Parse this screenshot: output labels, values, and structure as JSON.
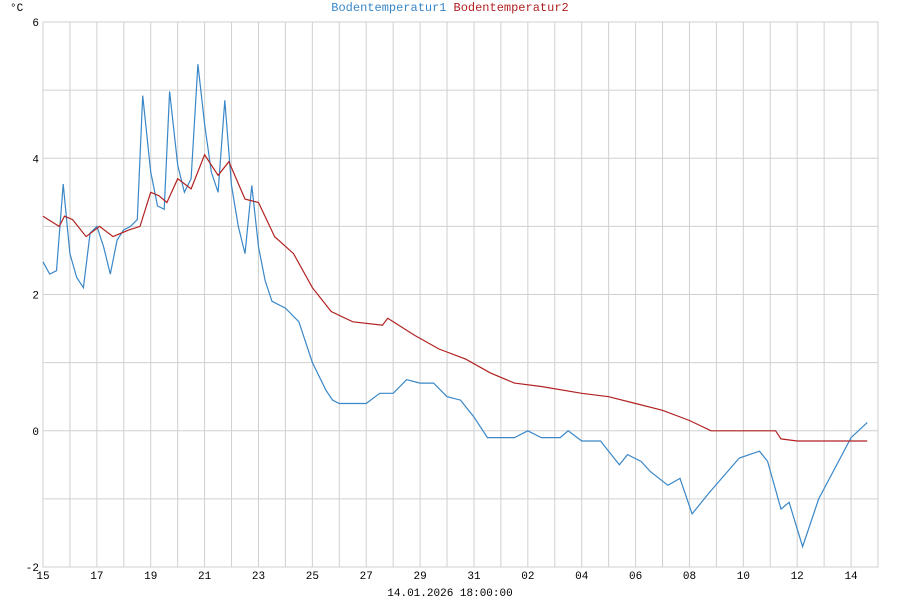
{
  "chart_data": {
    "type": "line",
    "unit": "°C",
    "footer": "14.01.2026 18:00:00",
    "xlim": [
      0,
      31
    ],
    "xticks": [
      {
        "value": 0,
        "label": "15"
      },
      {
        "value": 2,
        "label": "17"
      },
      {
        "value": 4,
        "label": "19"
      },
      {
        "value": 6,
        "label": "21"
      },
      {
        "value": 8,
        "label": "23"
      },
      {
        "value": 10,
        "label": "25"
      },
      {
        "value": 12,
        "label": "27"
      },
      {
        "value": 14,
        "label": "29"
      },
      {
        "value": 16,
        "label": "31"
      },
      {
        "value": 18,
        "label": "02"
      },
      {
        "value": 20,
        "label": "04"
      },
      {
        "value": 22,
        "label": "06"
      },
      {
        "value": 24,
        "label": "08"
      },
      {
        "value": 26,
        "label": "10"
      },
      {
        "value": 28,
        "label": "12"
      },
      {
        "value": 30,
        "label": "14"
      }
    ],
    "xminor": [
      1,
      3,
      5,
      7,
      9,
      11,
      13,
      15,
      17,
      19,
      21,
      23,
      25,
      27,
      29,
      31
    ],
    "ylim": [
      -2,
      6
    ],
    "yticks": [
      -2,
      0,
      2,
      4,
      6
    ],
    "yminor": [
      -1,
      1,
      3,
      5
    ],
    "grid": true,
    "series": [
      {
        "name": "Bodentemperatur1",
        "color": "#3a87c8",
        "x": [
          0,
          0.25,
          0.5,
          0.75,
          1.0,
          1.25,
          1.5,
          1.75,
          2.0,
          2.25,
          2.5,
          2.75,
          3.0,
          3.25,
          3.5,
          3.7,
          4.0,
          4.25,
          4.5,
          4.7,
          5.0,
          5.25,
          5.5,
          5.75,
          6.0,
          6.25,
          6.5,
          6.75,
          7.0,
          7.25,
          7.5,
          7.75,
          8.0,
          8.25,
          8.5,
          9.0,
          9.5,
          10.0,
          10.5,
          10.75,
          11.0,
          12.0,
          12.5,
          13.0,
          13.5,
          14.0,
          14.5,
          15.0,
          15.5,
          16.0,
          16.5,
          17.5,
          18.0,
          18.5,
          19.2,
          19.5,
          20.0,
          20.7,
          21.0,
          21.4,
          21.7,
          22.2,
          22.55,
          23.2,
          23.65,
          24.1,
          24.75,
          25.85,
          26.6,
          26.9,
          27.4,
          27.7,
          28.2,
          28.8,
          30.0,
          30.6
        ],
        "values": [
          2.48,
          2.3,
          2.35,
          3.62,
          2.6,
          2.25,
          2.1,
          2.9,
          3.0,
          2.7,
          2.3,
          2.8,
          2.95,
          3.0,
          3.1,
          4.92,
          3.8,
          3.3,
          3.25,
          4.98,
          3.9,
          3.5,
          3.7,
          5.38,
          4.5,
          3.8,
          3.5,
          4.85,
          3.6,
          3.0,
          2.6,
          3.6,
          2.7,
          2.2,
          1.9,
          1.8,
          1.6,
          1.0,
          0.6,
          0.45,
          0.4,
          0.4,
          0.55,
          0.55,
          0.75,
          0.7,
          0.7,
          0.5,
          0.45,
          0.2,
          -0.1,
          -0.1,
          0,
          -0.1,
          -0.1,
          0,
          -0.15,
          -0.15,
          -0.3,
          -0.5,
          -0.35,
          -0.45,
          -0.6,
          -0.8,
          -0.7,
          -1.22,
          -0.9,
          -0.4,
          -0.3,
          -0.45,
          -1.15,
          -1.05,
          -1.7,
          -1.0,
          -0.1,
          0.12
        ]
      },
      {
        "name": "Bodentemperatur2",
        "color": "#b22222",
        "x": [
          0,
          0.6,
          0.8,
          1.1,
          1.6,
          2.1,
          2.6,
          3.2,
          3.6,
          4.0,
          4.3,
          4.6,
          5.0,
          5.5,
          6.0,
          6.5,
          6.9,
          7.5,
          8.0,
          8.6,
          9.3,
          10.0,
          10.7,
          11.5,
          12.6,
          12.8,
          13.8,
          14.7,
          15.7,
          16.6,
          17.5,
          18.5,
          20.0,
          21.0,
          22.0,
          23.0,
          24.0,
          24.8,
          27.2,
          27.4,
          28.0,
          30.6
        ],
        "values": [
          3.15,
          3.0,
          3.15,
          3.1,
          2.85,
          3.0,
          2.85,
          2.95,
          3.0,
          3.5,
          3.45,
          3.35,
          3.7,
          3.55,
          4.05,
          3.75,
          3.95,
          3.4,
          3.35,
          2.85,
          2.6,
          2.1,
          1.75,
          1.6,
          1.55,
          1.65,
          1.4,
          1.2,
          1.05,
          0.85,
          0.7,
          0.65,
          0.55,
          0.5,
          0.4,
          0.3,
          0.15,
          0,
          0,
          -0.12,
          -0.15,
          -0.15
        ]
      }
    ]
  }
}
